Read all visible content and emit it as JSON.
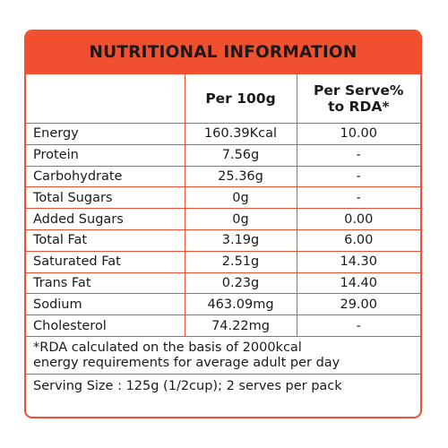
{
  "colors": {
    "accent": "#f0502f",
    "text": "#1a1a1a",
    "background": "#ffffff"
  },
  "title": "NUTRITIONAL INFORMATION",
  "columns": {
    "nutrient": "",
    "per_100g": "Per 100g",
    "per_serve_line1": "Per Serve%",
    "per_serve_line2": "to RDA*"
  },
  "rows": [
    {
      "nutrient": "Energy",
      "per_100g": "160.39Kcal",
      "per_serve": "10.00"
    },
    {
      "nutrient": "Protein",
      "per_100g": "7.56g",
      "per_serve": "-"
    },
    {
      "nutrient": "Carbohydrate",
      "per_100g": "25.36g",
      "per_serve": "-"
    },
    {
      "nutrient": "Total Sugars",
      "per_100g": "0g",
      "per_serve": "-"
    },
    {
      "nutrient": "Added Sugars",
      "per_100g": "0g",
      "per_serve": "0.00"
    },
    {
      "nutrient": "Total Fat",
      "per_100g": "3.19g",
      "per_serve": "6.00"
    },
    {
      "nutrient": "Saturated Fat",
      "per_100g": "2.51g",
      "per_serve": "14.30"
    },
    {
      "nutrient": "Trans Fat",
      "per_100g": "0.23g",
      "per_serve": "14.40"
    },
    {
      "nutrient": "Sodium",
      "per_100g": "463.09mg",
      "per_serve": "29.00"
    },
    {
      "nutrient": "Cholesterol",
      "per_100g": "74.22mg",
      "per_serve": "-"
    }
  ],
  "footnote_line1": "*RDA calculated on the basis of 2000kcal",
  "footnote_line2": "energy requirements for average adult per day",
  "serving_size": "Serving Size : 125g (1/2cup); 2 serves per pack"
}
